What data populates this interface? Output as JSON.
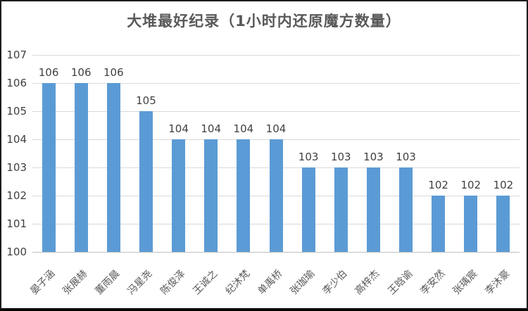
{
  "title": "大堆最好纪录（1小时内还原魔方数量）",
  "chart_data": {
    "type": "bar",
    "title": "大堆最好纪录（1小时内还原魔方数量）",
    "categories": [
      "晏子涵",
      "张展赫",
      "董雨晨",
      "冯星尧",
      "陈俊泽",
      "王诚之",
      "纪沐梵",
      "单禹桥",
      "张珈瑜",
      "李少伯",
      "高梓杰",
      "王晗谕",
      "李安然",
      "张瑀宸",
      "李沐豪"
    ],
    "values": [
      106,
      106,
      106,
      105,
      104,
      104,
      104,
      104,
      103,
      103,
      103,
      103,
      102,
      102,
      102
    ],
    "xlabel": "",
    "ylabel": "",
    "ylim": [
      100,
      107
    ],
    "ytick_step": 1,
    "yticks": [
      100,
      101,
      102,
      103,
      104,
      105,
      106,
      107
    ],
    "grid": true,
    "legend": false,
    "data_labels": true,
    "colors": {
      "bar": "#5B9BD5",
      "gridline": "#D9D9D9",
      "axis_line": "#BFBFBF",
      "data_label": "#404040",
      "tick_label": "#404040",
      "category_label": "#595959",
      "title": "#595959",
      "background": "#ffffff",
      "border": "#000000"
    }
  }
}
